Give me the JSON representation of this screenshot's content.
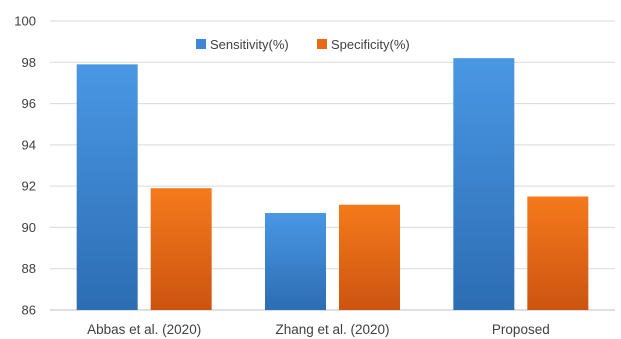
{
  "chart_data": {
    "type": "bar",
    "categories": [
      "Abbas et al. (2020)",
      "Zhang et al. (2020)",
      "Proposed"
    ],
    "series": [
      {
        "name": "Sensitivity(%)",
        "values": [
          97.9,
          90.7,
          98.2
        ],
        "color": "#3f87d2"
      },
      {
        "name": "Specificity(%)",
        "values": [
          91.9,
          91.1,
          91.5
        ],
        "color": "#e96a16"
      }
    ],
    "ylim": [
      86,
      100
    ],
    "yticks": [
      86,
      88,
      90,
      92,
      94,
      96,
      98,
      100
    ],
    "ytick_labels": [
      "86",
      "88",
      "90",
      "92",
      "94",
      "96",
      "98",
      "100"
    ],
    "grid": true,
    "legend": "top-center",
    "title": "",
    "xlabel": "",
    "ylabel": ""
  }
}
